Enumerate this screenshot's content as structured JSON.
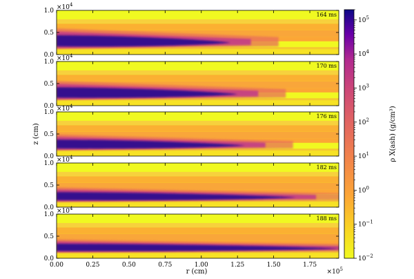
{
  "chart_data": {
    "type": "heatmap",
    "title": "",
    "xlabel": "r  (cm)",
    "ylabel": "z  (cm)",
    "x_range": [
      0,
      195000
    ],
    "y_range": [
      0,
      10000
    ],
    "x_offset_label": "×10^5",
    "y_offset_label": "×10^4",
    "x_ticks": [
      "0.00",
      "0.25",
      "0.50",
      "0.75",
      "1.00",
      "1.25",
      "1.50",
      "1.75"
    ],
    "y_ticks": [
      "0.0",
      "0.5",
      "1.0"
    ],
    "colormap": "plasma_r",
    "colors": {
      "low": "#f0f921",
      "mid_low": "#fca636",
      "mid": "#e16462",
      "mid_high": "#b12a90",
      "high": "#0d0887"
    },
    "panels": [
      {
        "time": "164 ms",
        "front_r": 120000,
        "dense_z_center": 2700,
        "dense_z_halfwidth": 1400
      },
      {
        "time": "170 ms",
        "front_r": 125000,
        "dense_z_center": 2600,
        "dense_z_halfwidth": 1300
      },
      {
        "time": "176 ms",
        "front_r": 130000,
        "dense_z_center": 2400,
        "dense_z_halfwidth": 1100
      },
      {
        "time": "182 ms",
        "front_r": 165000,
        "dense_z_center": 2200,
        "dense_z_halfwidth": 1000
      },
      {
        "time": "188 ms",
        "front_r": 195000,
        "dense_z_center": 2200,
        "dense_z_halfwidth": 900
      }
    ],
    "colorbar": {
      "label": "ρ X(ash)  (g/cm³)",
      "scale": "log",
      "min": 0.01,
      "max": 200000,
      "tick_labels": [
        "10^{-2}",
        "10^{-1}",
        "10^{0}",
        "10^{1}",
        "10^{2}",
        "10^{3}",
        "10^{4}",
        "10^{5}"
      ]
    }
  }
}
